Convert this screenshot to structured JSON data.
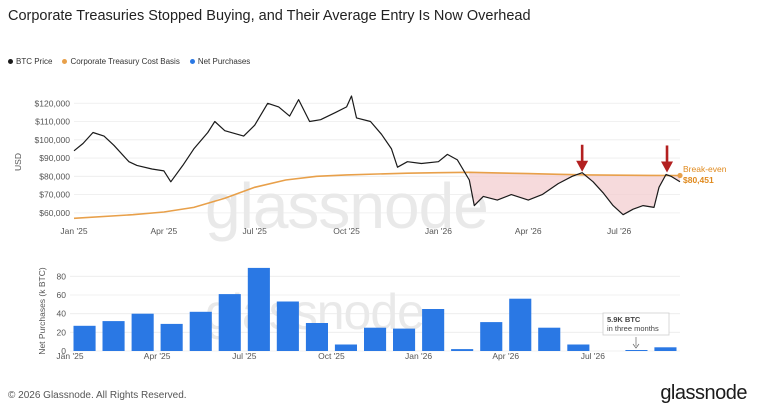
{
  "title": "Corporate Treasuries Stopped Buying, and Their Average Entry Is Now Overhead",
  "legend": [
    {
      "label": "BTC Price",
      "color": "#1a1a1a"
    },
    {
      "label": "Corporate Treasury Cost Basis",
      "color": "#e8a04a"
    },
    {
      "label": "Net Purchases",
      "color": "#2a78e4"
    }
  ],
  "watermark": "glassnode",
  "footer": "© 2026 Glassnode. All Rights Reserved.",
  "brand": "glassnode",
  "chart_data": [
    {
      "type": "line",
      "ylabel": "USD",
      "x_range": [
        "2025-01-01",
        "2026-08-31"
      ],
      "ylim": [
        55000,
        130000
      ],
      "x_ticks": [
        "Jan '25",
        "Apr '25",
        "Jul '25",
        "Oct '25",
        "Jan '26",
        "Apr '26",
        "Jul '26"
      ],
      "y_ticks": [
        "$60,000",
        "$70,000",
        "$80,000",
        "$90,000",
        "$100,000",
        "$110,000",
        "$120,000"
      ],
      "grid": true,
      "series": [
        {
          "name": "BTC Price",
          "color": "#1a1a1a",
          "points": [
            [
              "2025-01-01",
              94000
            ],
            [
              "2025-01-10",
              98000
            ],
            [
              "2025-01-20",
              104000
            ],
            [
              "2025-01-31",
              102000
            ],
            [
              "2025-02-10",
              97000
            ],
            [
              "2025-02-25",
              88000
            ],
            [
              "2025-03-05",
              86000
            ],
            [
              "2025-03-20",
              84000
            ],
            [
              "2025-04-01",
              83000
            ],
            [
              "2025-04-08",
              77000
            ],
            [
              "2025-04-20",
              86000
            ],
            [
              "2025-05-01",
              95000
            ],
            [
              "2025-05-15",
              104000
            ],
            [
              "2025-05-22",
              110000
            ],
            [
              "2025-06-01",
              105000
            ],
            [
              "2025-06-20",
              102000
            ],
            [
              "2025-07-01",
              108000
            ],
            [
              "2025-07-14",
              120000
            ],
            [
              "2025-07-25",
              118000
            ],
            [
              "2025-08-05",
              113000
            ],
            [
              "2025-08-14",
              122000
            ],
            [
              "2025-08-25",
              110000
            ],
            [
              "2025-09-05",
              111000
            ],
            [
              "2025-09-20",
              115000
            ],
            [
              "2025-10-01",
              118000
            ],
            [
              "2025-10-06",
              124000
            ],
            [
              "2025-10-11",
              112000
            ],
            [
              "2025-10-25",
              110000
            ],
            [
              "2025-11-05",
              103000
            ],
            [
              "2025-11-15",
              95000
            ],
            [
              "2025-11-21",
              85000
            ],
            [
              "2025-12-01",
              88000
            ],
            [
              "2025-12-15",
              87000
            ],
            [
              "2026-01-01",
              88000
            ],
            [
              "2026-01-10",
              92000
            ],
            [
              "2026-01-20",
              89000
            ],
            [
              "2026-02-01",
              78000
            ],
            [
              "2026-02-06",
              64000
            ],
            [
              "2026-02-15",
              69000
            ],
            [
              "2026-03-01",
              67000
            ],
            [
              "2026-03-15",
              70000
            ],
            [
              "2026-04-01",
              67000
            ],
            [
              "2026-04-15",
              70000
            ],
            [
              "2026-05-01",
              76000
            ],
            [
              "2026-05-15",
              80000
            ],
            [
              "2026-05-25",
              82000
            ],
            [
              "2026-06-05",
              77000
            ],
            [
              "2026-06-15",
              71000
            ],
            [
              "2026-06-25",
              64000
            ],
            [
              "2026-07-05",
              59000
            ],
            [
              "2026-07-15",
              62000
            ],
            [
              "2026-07-25",
              64000
            ],
            [
              "2026-08-05",
              63000
            ],
            [
              "2026-08-10",
              74000
            ],
            [
              "2026-08-17",
              81000
            ],
            [
              "2026-08-22",
              80000
            ],
            [
              "2026-08-31",
              77000
            ]
          ]
        },
        {
          "name": "Corporate Treasury Cost Basis",
          "color": "#e8a04a",
          "points": [
            [
              "2025-01-01",
              57000
            ],
            [
              "2025-03-01",
              59000
            ],
            [
              "2025-04-01",
              60500
            ],
            [
              "2025-05-01",
              63000
            ],
            [
              "2025-06-01",
              68000
            ],
            [
              "2025-07-01",
              74000
            ],
            [
              "2025-08-01",
              78000
            ],
            [
              "2025-09-01",
              80000
            ],
            [
              "2025-10-01",
              80800
            ],
            [
              "2025-11-01",
              81300
            ],
            [
              "2025-12-01",
              81700
            ],
            [
              "2026-01-01",
              82000
            ],
            [
              "2026-02-01",
              82200
            ],
            [
              "2026-03-01",
              81900
            ],
            [
              "2026-04-01",
              81500
            ],
            [
              "2026-05-01",
              81100
            ],
            [
              "2026-06-01",
              80800
            ],
            [
              "2026-07-01",
              80600
            ],
            [
              "2026-08-01",
              80500
            ],
            [
              "2026-08-31",
              80451
            ]
          ]
        }
      ],
      "annotations": [
        {
          "type": "arrow",
          "x": "2026-05-25",
          "color": "#b32020"
        },
        {
          "type": "arrow",
          "x": "2026-08-18",
          "color": "#b32020"
        },
        {
          "type": "label",
          "text": "Break-even",
          "value": "$80,451",
          "color": "#e08a1e"
        }
      ]
    },
    {
      "type": "bar",
      "ylabel": "Net Purchases (k BTC)",
      "ylim": [
        0,
        90
      ],
      "y_ticks": [
        "0",
        "20",
        "40",
        "60",
        "80"
      ],
      "x_ticks": [
        "Jan '25",
        "Apr '25",
        "Jul '25",
        "Oct '25",
        "Jan '26",
        "Apr '26",
        "Jul '26"
      ],
      "grid": true,
      "series": [
        {
          "name": "Net Purchases",
          "color": "#2a78e4",
          "categories": [
            "2025-01",
            "2025-02",
            "2025-03",
            "2025-04",
            "2025-05",
            "2025-06",
            "2025-07",
            "2025-08",
            "2025-09",
            "2025-10",
            "2025-11",
            "2025-12",
            "2026-01",
            "2026-02",
            "2026-03",
            "2026-04",
            "2026-05",
            "2026-06",
            "2026-07",
            "2026-08",
            "2026-09"
          ],
          "values": [
            27,
            32,
            40,
            29,
            42,
            61,
            89,
            53,
            30,
            7,
            25,
            24,
            45,
            2,
            31,
            56,
            25,
            7,
            0,
            1,
            4
          ]
        }
      ],
      "annotation": {
        "line1": "5.9K BTC",
        "line2": "in three months"
      }
    }
  ]
}
